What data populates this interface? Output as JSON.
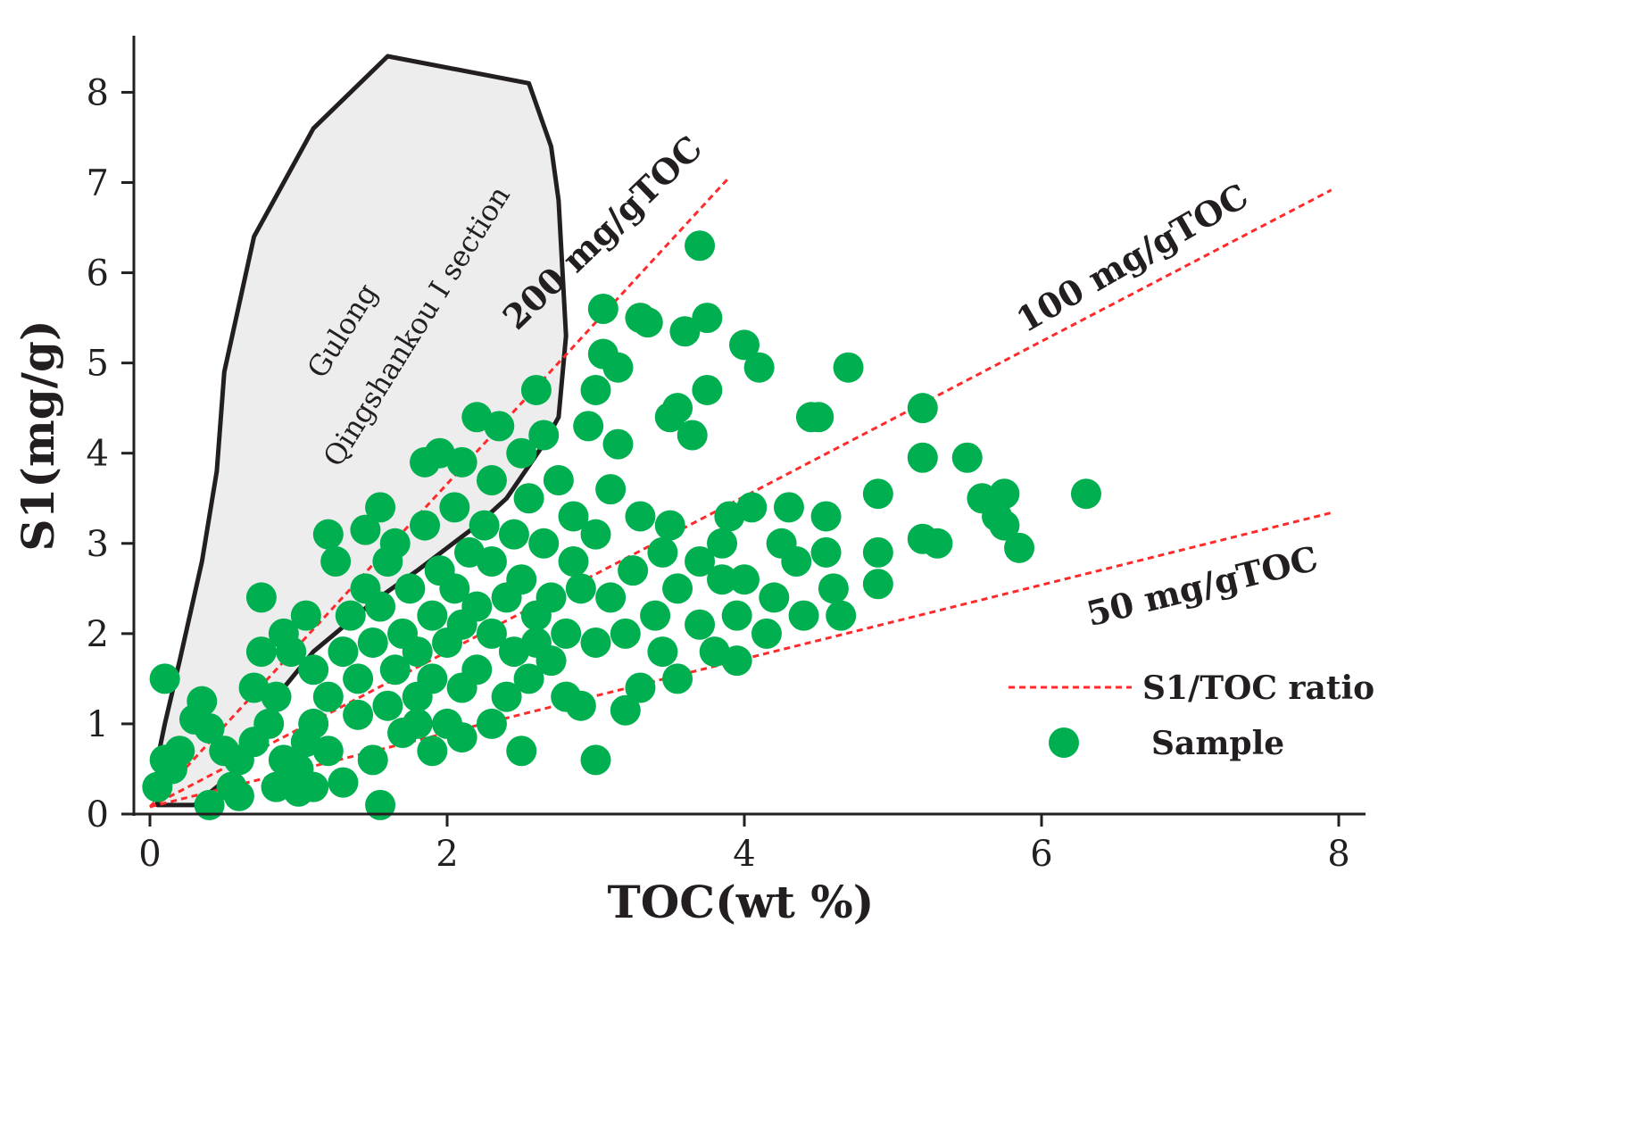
{
  "chart_data": {
    "type": "scatter",
    "xlabel": "TOC(wt %)",
    "ylabel": "S1(mg/g)",
    "xlim": [
      0,
      8
    ],
    "ylim": [
      0,
      8.4
    ],
    "x_ticks": [
      0,
      2,
      4,
      6,
      8
    ],
    "y_ticks": [
      0,
      1,
      2,
      3,
      4,
      5,
      6,
      7,
      8
    ],
    "grid": false,
    "ratio_lines": [
      {
        "name": "200 mg/gTOC",
        "slope": 1.79,
        "x_end": 3.9
      },
      {
        "name": "100 mg/gTOC",
        "slope": 0.86,
        "x_end": 7.95
      },
      {
        "name": "50 mg/gTOC",
        "slope": 0.41,
        "x_end": 7.95
      }
    ],
    "region": {
      "name": "Gulong Qingshankou I section",
      "label_lines": [
        "Gulong",
        "Qingshankou I section"
      ],
      "polygon": [
        [
          0.05,
          0.1
        ],
        [
          0.05,
          0.6
        ],
        [
          0.1,
          1.0
        ],
        [
          0.2,
          1.7
        ],
        [
          0.35,
          2.8
        ],
        [
          0.45,
          3.8
        ],
        [
          0.5,
          4.9
        ],
        [
          0.7,
          6.4
        ],
        [
          1.1,
          7.6
        ],
        [
          1.6,
          8.4
        ],
        [
          2.55,
          8.1
        ],
        [
          2.7,
          7.4
        ],
        [
          2.75,
          6.8
        ],
        [
          2.8,
          5.3
        ],
        [
          2.75,
          4.4
        ],
        [
          2.65,
          4.1
        ],
        [
          2.4,
          3.5
        ],
        [
          2.2,
          3.2
        ],
        [
          1.8,
          2.7
        ],
        [
          1.5,
          2.35
        ],
        [
          1.1,
          1.8
        ],
        [
          0.9,
          1.4
        ],
        [
          0.75,
          1.0
        ],
        [
          0.6,
          0.5
        ],
        [
          0.3,
          0.1
        ],
        [
          0.05,
          0.1
        ]
      ]
    },
    "series": [
      {
        "name": "Sample",
        "points": [
          [
            0.05,
            0.3
          ],
          [
            0.1,
            0.6
          ],
          [
            0.15,
            0.5
          ],
          [
            0.2,
            0.7
          ],
          [
            0.1,
            1.5
          ],
          [
            0.3,
            1.05
          ],
          [
            0.35,
            1.25
          ],
          [
            0.4,
            0.95
          ],
          [
            0.5,
            0.7
          ],
          [
            0.55,
            0.3
          ],
          [
            0.6,
            0.6
          ],
          [
            0.7,
            0.8
          ],
          [
            0.7,
            1.4
          ],
          [
            0.75,
            1.8
          ],
          [
            0.75,
            2.4
          ],
          [
            0.8,
            1.0
          ],
          [
            0.85,
            1.3
          ],
          [
            0.9,
            0.6
          ],
          [
            0.9,
            2.0
          ],
          [
            0.95,
            1.8
          ],
          [
            1.0,
            0.5
          ],
          [
            1.05,
            0.8
          ],
          [
            1.1,
            1.0
          ],
          [
            1.1,
            1.6
          ],
          [
            1.05,
            2.2
          ],
          [
            1.2,
            0.7
          ],
          [
            1.2,
            1.3
          ],
          [
            1.2,
            3.1
          ],
          [
            1.25,
            2.8
          ],
          [
            1.3,
            1.8
          ],
          [
            1.35,
            2.2
          ],
          [
            1.4,
            1.1
          ],
          [
            1.4,
            1.5
          ],
          [
            1.45,
            2.5
          ],
          [
            1.45,
            3.15
          ],
          [
            1.5,
            0.6
          ],
          [
            1.5,
            1.9
          ],
          [
            1.55,
            2.3
          ],
          [
            1.55,
            3.4
          ],
          [
            1.6,
            1.2
          ],
          [
            1.6,
            2.8
          ],
          [
            1.65,
            1.6
          ],
          [
            1.65,
            3.0
          ],
          [
            1.7,
            0.9
          ],
          [
            1.7,
            2.0
          ],
          [
            1.75,
            2.5
          ],
          [
            1.8,
            1.3
          ],
          [
            1.8,
            1.8
          ],
          [
            1.85,
            3.2
          ],
          [
            1.85,
            3.9
          ],
          [
            1.9,
            0.7
          ],
          [
            1.9,
            1.5
          ],
          [
            1.9,
            2.2
          ],
          [
            1.95,
            2.7
          ],
          [
            1.95,
            4.0
          ],
          [
            2.0,
            1.0
          ],
          [
            2.0,
            1.9
          ],
          [
            2.05,
            2.5
          ],
          [
            2.05,
            3.4
          ],
          [
            2.1,
            0.85
          ],
          [
            2.1,
            1.4
          ],
          [
            2.1,
            2.1
          ],
          [
            2.1,
            3.9
          ],
          [
            2.15,
            2.9
          ],
          [
            2.2,
            1.6
          ],
          [
            2.2,
            2.3
          ],
          [
            2.2,
            4.4
          ],
          [
            2.25,
            3.2
          ],
          [
            2.3,
            1.0
          ],
          [
            2.3,
            2.0
          ],
          [
            2.3,
            2.8
          ],
          [
            2.3,
            3.7
          ],
          [
            2.35,
            4.3
          ],
          [
            2.4,
            1.3
          ],
          [
            2.4,
            2.4
          ],
          [
            2.45,
            1.8
          ],
          [
            2.45,
            3.1
          ],
          [
            2.5,
            0.7
          ],
          [
            2.5,
            2.6
          ],
          [
            2.5,
            4.0
          ],
          [
            2.55,
            1.5
          ],
          [
            2.55,
            3.5
          ],
          [
            2.6,
            2.2
          ],
          [
            2.6,
            4.7
          ],
          [
            2.65,
            3.0
          ],
          [
            2.65,
            4.2
          ],
          [
            2.7,
            1.7
          ],
          [
            2.7,
            2.4
          ],
          [
            2.75,
            3.7
          ],
          [
            2.8,
            1.3
          ],
          [
            2.8,
            2.0
          ],
          [
            2.85,
            2.8
          ],
          [
            2.85,
            3.3
          ],
          [
            2.9,
            1.2
          ],
          [
            2.9,
            2.5
          ],
          [
            2.95,
            4.3
          ],
          [
            3.0,
            0.6
          ],
          [
            3.0,
            1.9
          ],
          [
            3.0,
            3.1
          ],
          [
            3.0,
            4.7
          ],
          [
            3.05,
            5.6
          ],
          [
            3.05,
            5.1
          ],
          [
            3.1,
            2.4
          ],
          [
            3.1,
            3.6
          ],
          [
            3.15,
            4.1
          ],
          [
            3.15,
            4.95
          ],
          [
            3.2,
            1.15
          ],
          [
            3.2,
            2.0
          ],
          [
            3.25,
            2.7
          ],
          [
            3.3,
            1.4
          ],
          [
            3.3,
            3.3
          ],
          [
            3.3,
            5.5
          ],
          [
            3.35,
            5.45
          ],
          [
            3.4,
            2.2
          ],
          [
            3.45,
            1.8
          ],
          [
            3.45,
            2.9
          ],
          [
            3.5,
            3.2
          ],
          [
            3.5,
            4.4
          ],
          [
            3.55,
            1.5
          ],
          [
            3.55,
            2.5
          ],
          [
            3.55,
            4.5
          ],
          [
            3.6,
            5.35
          ],
          [
            3.65,
            4.2
          ],
          [
            3.7,
            2.1
          ],
          [
            3.7,
            2.8
          ],
          [
            3.7,
            6.3
          ],
          [
            3.75,
            4.7
          ],
          [
            3.75,
            5.5
          ],
          [
            3.8,
            1.8
          ],
          [
            3.85,
            2.6
          ],
          [
            3.9,
            3.3
          ],
          [
            3.95,
            1.7
          ],
          [
            3.95,
            2.2
          ],
          [
            4.0,
            2.6
          ],
          [
            4.0,
            5.2
          ],
          [
            4.05,
            3.4
          ],
          [
            4.1,
            4.95
          ],
          [
            4.15,
            2.0
          ],
          [
            4.2,
            2.4
          ],
          [
            4.25,
            3.0
          ],
          [
            4.3,
            3.4
          ],
          [
            4.35,
            2.8
          ],
          [
            4.4,
            2.2
          ],
          [
            4.45,
            4.4
          ],
          [
            4.5,
            4.4
          ],
          [
            4.55,
            2.9
          ],
          [
            4.55,
            3.3
          ],
          [
            4.6,
            2.5
          ],
          [
            4.65,
            2.2
          ],
          [
            4.7,
            4.95
          ],
          [
            4.9,
            2.9
          ],
          [
            4.9,
            3.55
          ],
          [
            4.9,
            2.55
          ],
          [
            5.2,
            3.05
          ],
          [
            5.2,
            3.95
          ],
          [
            5.2,
            4.5
          ],
          [
            5.3,
            3.0
          ],
          [
            5.5,
            3.95
          ],
          [
            5.6,
            3.5
          ],
          [
            5.7,
            3.3
          ],
          [
            5.75,
            3.55
          ],
          [
            5.75,
            3.2
          ],
          [
            5.85,
            2.95
          ],
          [
            6.3,
            3.55
          ],
          [
            1.55,
            0.1
          ],
          [
            0.4,
            0.1
          ],
          [
            0.6,
            0.2
          ],
          [
            0.85,
            0.3
          ],
          [
            1.0,
            0.25
          ],
          [
            1.1,
            0.3
          ],
          [
            1.3,
            0.35
          ],
          [
            1.8,
            1.0
          ],
          [
            2.6,
            1.9
          ],
          [
            3.85,
            3.0
          ]
        ]
      }
    ],
    "legend": [
      {
        "label": "S1/TOC ratio",
        "marker": "dashed-line"
      },
      {
        "label": "Sample",
        "marker": "circle"
      }
    ],
    "legend_position": "bottom-right",
    "colors": {
      "sample": "#00b050",
      "ratio_line": "#ff2a2a",
      "region_fill": "#ededee",
      "region_stroke": "#231f20",
      "axis": "#231f20",
      "text": "#231f20"
    }
  }
}
